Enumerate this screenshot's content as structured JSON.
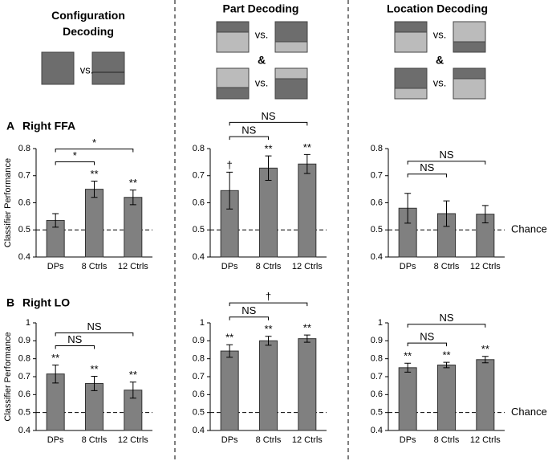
{
  "headings": [
    "Configuration Decoding",
    "Part Decoding",
    "Location Decoding"
  ],
  "comparison_words": {
    "vs": "vs.",
    "and": "&"
  },
  "row_labels": [
    {
      "letter": "A",
      "name": "Right FFA"
    },
    {
      "letter": "B",
      "name": "Right LO"
    }
  ],
  "chart_data": [
    {
      "type": "bar",
      "ylabel": "Classifier Performance",
      "categories": [
        "DPs",
        "8 Ctrls",
        "12 Ctrls"
      ],
      "values": [
        0.535,
        0.65,
        0.62
      ],
      "errors": [
        0.025,
        0.03,
        0.027
      ],
      "color": "#808080",
      "ylim": [
        0.4,
        0.8
      ],
      "yticks": [
        0.4,
        0.5,
        0.6,
        0.7,
        0.8
      ],
      "reference": 0.5,
      "value_annotations": [
        null,
        "**",
        "**"
      ],
      "comparisons": [
        {
          "between": [
            "DPs",
            "8 Ctrls"
          ],
          "label": "*"
        },
        {
          "between": [
            "DPs",
            "12 Ctrls"
          ],
          "label": "*"
        }
      ]
    },
    {
      "type": "bar",
      "categories": [
        "DPs",
        "8 Ctrls",
        "12 Ctrls"
      ],
      "values": [
        0.645,
        0.728,
        0.743
      ],
      "errors": [
        0.068,
        0.045,
        0.035
      ],
      "color": "#808080",
      "ylim": [
        0.4,
        0.8
      ],
      "yticks": [
        0.4,
        0.5,
        0.6,
        0.7,
        0.8
      ],
      "reference": 0.5,
      "value_annotations": [
        "†",
        "**",
        "**"
      ],
      "comparisons": [
        {
          "between": [
            "DPs",
            "8 Ctrls"
          ],
          "label": "NS"
        },
        {
          "between": [
            "DPs",
            "12 Ctrls"
          ],
          "label": "NS"
        }
      ]
    },
    {
      "type": "bar",
      "categories": [
        "DPs",
        "8 Ctrls",
        "12 Ctrls"
      ],
      "values": [
        0.58,
        0.56,
        0.558
      ],
      "errors": [
        0.055,
        0.047,
        0.032
      ],
      "color": "#808080",
      "ylim": [
        0.4,
        0.8
      ],
      "yticks": [
        0.4,
        0.5,
        0.6,
        0.7,
        0.8
      ],
      "reference": 0.5,
      "reference_label": "Chance",
      "comparisons": [
        {
          "between": [
            "DPs",
            "8 Ctrls"
          ],
          "label": "NS"
        },
        {
          "between": [
            "DPs",
            "12 Ctrls"
          ],
          "label": "NS"
        }
      ]
    },
    {
      "type": "bar",
      "ylabel": "Classifier Performance",
      "categories": [
        "DPs",
        "8 Ctrls",
        "12 Ctrls"
      ],
      "values": [
        0.715,
        0.662,
        0.625
      ],
      "errors": [
        0.05,
        0.04,
        0.045
      ],
      "color": "#808080",
      "ylim": [
        0.4,
        1
      ],
      "yticks": [
        0.4,
        0.5,
        0.6,
        0.7,
        0.8,
        0.9,
        1
      ],
      "reference": 0.5,
      "value_annotations": [
        "**",
        "**",
        "**"
      ],
      "comparisons": [
        {
          "between": [
            "DPs",
            "8 Ctrls"
          ],
          "label": "NS"
        },
        {
          "between": [
            "DPs",
            "12 Ctrls"
          ],
          "label": "NS"
        }
      ]
    },
    {
      "type": "bar",
      "categories": [
        "DPs",
        "8 Ctrls",
        "12 Ctrls"
      ],
      "values": [
        0.843,
        0.9,
        0.912
      ],
      "errors": [
        0.035,
        0.025,
        0.02
      ],
      "color": "#808080",
      "ylim": [
        0.4,
        1
      ],
      "yticks": [
        0.4,
        0.5,
        0.6,
        0.7,
        0.8,
        0.9,
        1
      ],
      "reference": 0.5,
      "value_annotations": [
        "**",
        "**",
        "**"
      ],
      "comparisons": [
        {
          "between": [
            "DPs",
            "8 Ctrls"
          ],
          "label": "NS"
        },
        {
          "between": [
            "DPs",
            "12 Ctrls"
          ],
          "label": "†"
        }
      ]
    },
    {
      "type": "bar",
      "categories": [
        "DPs",
        "8 Ctrls",
        "12 Ctrls"
      ],
      "values": [
        0.75,
        0.765,
        0.795
      ],
      "errors": [
        0.025,
        0.015,
        0.018
      ],
      "color": "#808080",
      "ylim": [
        0.4,
        1
      ],
      "yticks": [
        0.4,
        0.5,
        0.6,
        0.7,
        0.8,
        0.9,
        1
      ],
      "reference": 0.5,
      "reference_label": "Chance",
      "value_annotations": [
        "**",
        "**",
        "**"
      ],
      "comparisons": [
        {
          "between": [
            "DPs",
            "8 Ctrls"
          ],
          "label": "NS"
        },
        {
          "between": [
            "DPs",
            "12 Ctrls"
          ],
          "label": "NS"
        }
      ]
    }
  ]
}
